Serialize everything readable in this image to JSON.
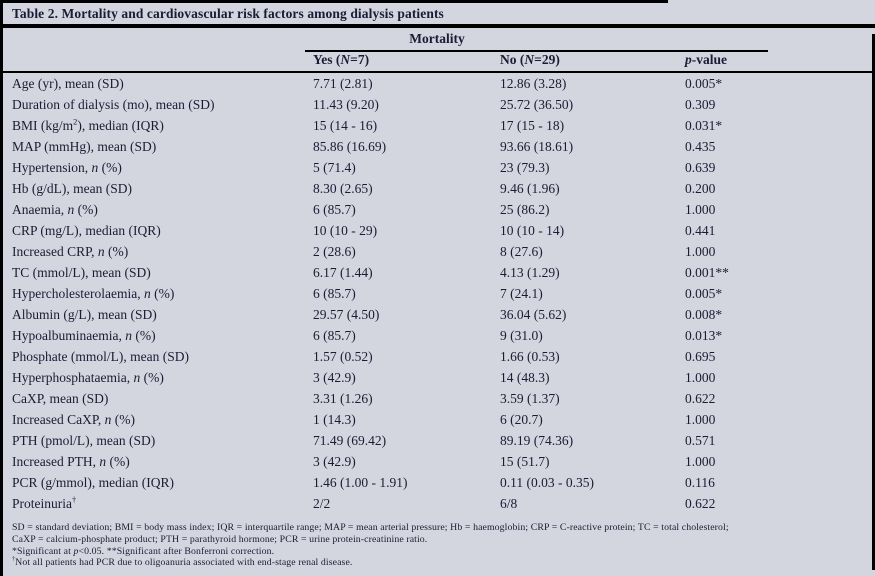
{
  "title": "Table 2. Mortality and cardiovascular risk factors among dialysis patients",
  "header": {
    "group_label": "Mortality",
    "columns": {
      "yes": "Yes ({i}N{/i}=7)",
      "no": "No ({i}N{/i}=29)",
      "p": "{i}p{/i}-value"
    }
  },
  "rows": [
    {
      "label": "Age (yr), mean (SD)",
      "yes": "7.71 (2.81)",
      "no": "12.86 (3.28)",
      "p": "0.005*"
    },
    {
      "label": "Duration of dialysis (mo), mean (SD)",
      "yes": "11.43 (9.20)",
      "no": "25.72 (36.50)",
      "p": "0.309"
    },
    {
      "label": "BMI (kg/m{sup}2{/sup}), median (IQR)",
      "yes": "15 (14 - 16)",
      "no": "17 (15 - 18)",
      "p": "0.031*"
    },
    {
      "label": "MAP (mmHg), mean (SD)",
      "yes": "85.86 (16.69)",
      "no": "93.66 (18.61)",
      "p": "0.435"
    },
    {
      "label": "Hypertension, {i}n{/i} (%)",
      "yes": "5 (71.4)",
      "no": "23 (79.3)",
      "p": "0.639"
    },
    {
      "label": "Hb (g/dL), mean (SD)",
      "yes": "8.30 (2.65)",
      "no": "9.46 (1.96)",
      "p": "0.200"
    },
    {
      "label": "Anaemia, {i}n{/i} (%)",
      "yes": "6 (85.7)",
      "no": "25 (86.2)",
      "p": "1.000"
    },
    {
      "label": "CRP (mg/L), median (IQR)",
      "yes": "10 (10 - 29)",
      "no": "10 (10 - 14)",
      "p": "0.441"
    },
    {
      "label": "Increased CRP, {i}n{/i} (%)",
      "yes": "2 (28.6)",
      "no": "8 (27.6)",
      "p": "1.000"
    },
    {
      "label": "TC (mmol/L), mean (SD)",
      "yes": "6.17 (1.44)",
      "no": "4.13 (1.29)",
      "p": "0.001**"
    },
    {
      "label": "Hypercholesterolaemia, {i}n{/i} (%)",
      "yes": "6 (85.7)",
      "no": "7 (24.1)",
      "p": "0.005*"
    },
    {
      "label": "Albumin (g/L), mean (SD)",
      "yes": "29.57 (4.50)",
      "no": "36.04 (5.62)",
      "p": "0.008*"
    },
    {
      "label": "Hypoalbuminaemia, {i}n{/i} (%)",
      "yes": "6 (85.7)",
      "no": "9 (31.0)",
      "p": "0.013*"
    },
    {
      "label": "Phosphate (mmol/L), mean (SD)",
      "yes": "1.57 (0.52)",
      "no": "1.66 (0.53)",
      "p": "0.695"
    },
    {
      "label": "Hyperphosphataemia, {i}n{/i} (%)",
      "yes": "3 (42.9)",
      "no": "14 (48.3)",
      "p": "1.000"
    },
    {
      "label": "CaXP, mean (SD)",
      "yes": "3.31 (1.26)",
      "no": "3.59 (1.37)",
      "p": "0.622"
    },
    {
      "label": "Increased CaXP, {i}n{/i} (%)",
      "yes": "1 (14.3)",
      "no": "6 (20.7)",
      "p": "1.000"
    },
    {
      "label": "PTH (pmol/L), mean (SD)",
      "yes": "71.49 (69.42)",
      "no": "89.19 (74.36)",
      "p": "0.571"
    },
    {
      "label": "Increased PTH, {i}n{/i} (%)",
      "yes": "3 (42.9)",
      "no": "15 (51.7)",
      "p": "1.000"
    },
    {
      "label": "PCR (g/mmol), median (IQR)",
      "yes": "1.46 (1.00 - 1.91)",
      "no": "0.11 (0.03 - 0.35)",
      "p": "0.116"
    },
    {
      "label": "Proteinuria{sup}†{/sup}",
      "yes": "2/2",
      "no": "6/8",
      "p": "0.622"
    }
  ],
  "footnotes": [
    "SD = standard deviation; BMI = body mass index; IQR = interquartile range; MAP = mean arterial pressure; Hb = haemoglobin; CRP = C-reactive protein; TC = total cholesterol;",
    "CaXP = calcium-phosphate product; PTH = parathyroid hormone; PCR = urine protein-creatinine ratio.",
    "*Significant at {i}p{/i}<0.05. **Significant after Bonferroni correction.",
    "{sup}†{/sup}Not all patients had PCR due to oligoanuria associated with end-stage renal disease."
  ],
  "colors": {
    "background": "#d3d6de",
    "text": "#1b1b35",
    "rule": "#000000"
  }
}
